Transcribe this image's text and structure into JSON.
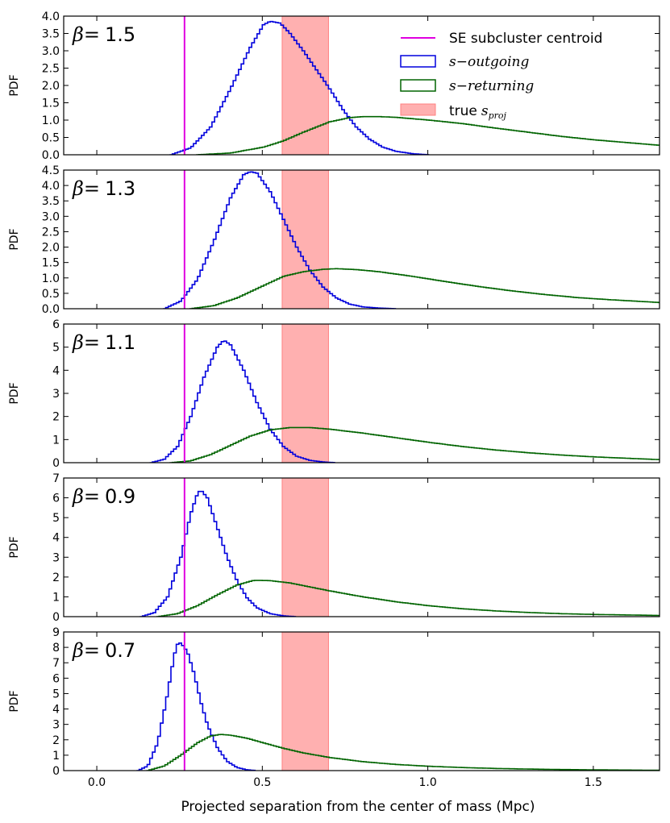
{
  "figure": {
    "xlabel": "Projected separation from the center of mass (Mpc)",
    "ylabel": "PDF",
    "xlim": [
      -0.1,
      1.7
    ],
    "xticks": [
      0.0,
      0.5,
      1.0,
      1.5
    ],
    "xtick_labels": [
      "0.0",
      "0.5",
      "1.0",
      "1.5"
    ],
    "colors": {
      "centroid": "#e000e0",
      "outgoing": "#0000dd",
      "returning": "#006400",
      "band_fill": "#ffb0b0",
      "band_edge": "#ff8080"
    }
  },
  "legend": {
    "position": "top-right",
    "items": [
      {
        "label": "SE subcluster centroid",
        "symbol": "line",
        "color": "#e000e0"
      },
      {
        "label": "s−outgoing",
        "symbol": "outline",
        "color": "#0000dd"
      },
      {
        "label": "s−returning",
        "symbol": "outline",
        "color": "#006400"
      },
      {
        "label": "true",
        "label_suffix": "s",
        "label_sub": "proj",
        "symbol": "fill",
        "color": "#ffb0b0"
      }
    ]
  },
  "chart_data": [
    {
      "type": "line",
      "panel_label": "β=",
      "beta": "1.5",
      "ylabel": "PDF",
      "ylim": [
        0,
        4.0
      ],
      "yticks": [
        0.0,
        0.5,
        1.0,
        1.5,
        2.0,
        2.5,
        3.0,
        3.5,
        4.0
      ],
      "ytick_labels": [
        "0.0",
        "0.5",
        "1.0",
        "1.5",
        "2.0",
        "2.5",
        "3.0",
        "3.5",
        "4.0"
      ],
      "centroid_x": 0.265,
      "band": [
        0.56,
        0.7
      ],
      "series": [
        {
          "name": "s−outgoing",
          "x": [
            0.22,
            0.28,
            0.34,
            0.4,
            0.46,
            0.5,
            0.52,
            0.55,
            0.58,
            0.62,
            0.66,
            0.7,
            0.74,
            0.78,
            0.82,
            0.86,
            0.9,
            0.95,
            1.0
          ],
          "y": [
            0.0,
            0.2,
            0.8,
            1.9,
            3.1,
            3.75,
            3.85,
            3.8,
            3.5,
            3.0,
            2.45,
            1.9,
            1.3,
            0.8,
            0.45,
            0.22,
            0.1,
            0.03,
            0.0
          ]
        },
        {
          "name": "s−returning",
          "x": [
            0.3,
            0.4,
            0.5,
            0.56,
            0.62,
            0.7,
            0.76,
            0.8,
            0.85,
            0.9,
            1.0,
            1.1,
            1.2,
            1.3,
            1.4,
            1.5,
            1.6,
            1.7
          ],
          "y": [
            0.0,
            0.05,
            0.22,
            0.4,
            0.65,
            0.95,
            1.07,
            1.1,
            1.1,
            1.08,
            1.0,
            0.9,
            0.77,
            0.65,
            0.53,
            0.43,
            0.35,
            0.27
          ]
        }
      ]
    },
    {
      "type": "line",
      "panel_label": "β=",
      "beta": "1.3",
      "ylabel": "PDF",
      "ylim": [
        0,
        4.5
      ],
      "yticks": [
        0.0,
        0.5,
        1.0,
        1.5,
        2.0,
        2.5,
        3.0,
        3.5,
        4.0,
        4.5
      ],
      "ytick_labels": [
        "0.0",
        "0.5",
        "1.0",
        "1.5",
        "2.0",
        "2.5",
        "3.0",
        "3.5",
        "4.0",
        "4.5"
      ],
      "centroid_x": 0.265,
      "band": [
        0.56,
        0.7
      ],
      "series": [
        {
          "name": "s−outgoing",
          "x": [
            0.2,
            0.25,
            0.3,
            0.35,
            0.4,
            0.44,
            0.46,
            0.48,
            0.52,
            0.56,
            0.6,
            0.64,
            0.68,
            0.72,
            0.76,
            0.8,
            0.85,
            0.9
          ],
          "y": [
            0.0,
            0.25,
            0.95,
            2.2,
            3.6,
            4.35,
            4.45,
            4.4,
            3.8,
            2.9,
            2.0,
            1.25,
            0.7,
            0.35,
            0.15,
            0.06,
            0.02,
            0.0
          ]
        },
        {
          "name": "s−returning",
          "x": [
            0.28,
            0.35,
            0.42,
            0.5,
            0.56,
            0.62,
            0.68,
            0.72,
            0.78,
            0.85,
            0.95,
            1.05,
            1.15,
            1.25,
            1.35,
            1.45,
            1.55,
            1.7
          ],
          "y": [
            0.0,
            0.1,
            0.35,
            0.75,
            1.05,
            1.2,
            1.28,
            1.3,
            1.27,
            1.2,
            1.05,
            0.88,
            0.72,
            0.58,
            0.46,
            0.36,
            0.29,
            0.2
          ]
        }
      ]
    },
    {
      "type": "line",
      "panel_label": "β=",
      "beta": "1.1",
      "ylabel": "PDF",
      "ylim": [
        0,
        6
      ],
      "yticks": [
        0,
        1,
        2,
        3,
        4,
        5,
        6
      ],
      "ytick_labels": [
        "0",
        "1",
        "2",
        "3",
        "4",
        "5",
        "6"
      ],
      "centroid_x": 0.265,
      "band": [
        0.56,
        0.7
      ],
      "series": [
        {
          "name": "s−outgoing",
          "x": [
            0.16,
            0.2,
            0.24,
            0.28,
            0.32,
            0.36,
            0.38,
            0.4,
            0.44,
            0.48,
            0.52,
            0.56,
            0.6,
            0.64,
            0.68,
            0.72
          ],
          "y": [
            0.0,
            0.15,
            0.7,
            2.0,
            3.7,
            5.0,
            5.3,
            5.1,
            4.0,
            2.6,
            1.45,
            0.7,
            0.28,
            0.1,
            0.03,
            0.0
          ]
        },
        {
          "name": "s−returning",
          "x": [
            0.22,
            0.28,
            0.34,
            0.4,
            0.46,
            0.52,
            0.58,
            0.64,
            0.7,
            0.8,
            0.9,
            1.0,
            1.1,
            1.2,
            1.3,
            1.4,
            1.5,
            1.7
          ],
          "y": [
            0.0,
            0.08,
            0.35,
            0.75,
            1.15,
            1.42,
            1.52,
            1.52,
            1.45,
            1.28,
            1.08,
            0.88,
            0.7,
            0.55,
            0.43,
            0.33,
            0.25,
            0.13
          ]
        }
      ]
    },
    {
      "type": "line",
      "panel_label": "β=",
      "beta": "0.9",
      "ylabel": "PDF",
      "ylim": [
        0,
        7
      ],
      "yticks": [
        0,
        1,
        2,
        3,
        4,
        5,
        6,
        7
      ],
      "ytick_labels": [
        "0",
        "1",
        "2",
        "3",
        "4",
        "5",
        "6",
        "7"
      ],
      "centroid_x": 0.265,
      "band": [
        0.56,
        0.7
      ],
      "series": [
        {
          "name": "s−outgoing",
          "x": [
            0.13,
            0.17,
            0.21,
            0.25,
            0.28,
            0.3,
            0.31,
            0.33,
            0.36,
            0.39,
            0.42,
            0.45,
            0.48,
            0.52,
            0.56,
            0.6
          ],
          "y": [
            0.0,
            0.2,
            1.0,
            3.0,
            5.2,
            6.2,
            6.4,
            6.0,
            4.5,
            3.0,
            1.8,
            0.95,
            0.45,
            0.15,
            0.04,
            0.0
          ]
        },
        {
          "name": "s−returning",
          "x": [
            0.18,
            0.24,
            0.3,
            0.36,
            0.42,
            0.47,
            0.52,
            0.58,
            0.64,
            0.7,
            0.8,
            0.9,
            1.0,
            1.1,
            1.2,
            1.3,
            1.4,
            1.5,
            1.7
          ],
          "y": [
            0.0,
            0.15,
            0.55,
            1.1,
            1.6,
            1.83,
            1.82,
            1.7,
            1.5,
            1.3,
            1.0,
            0.75,
            0.55,
            0.4,
            0.29,
            0.21,
            0.15,
            0.11,
            0.06
          ]
        }
      ]
    },
    {
      "type": "line",
      "panel_label": "β=",
      "beta": "0.7",
      "ylabel": "PDF",
      "ylim": [
        0,
        9
      ],
      "yticks": [
        0,
        1,
        2,
        3,
        4,
        5,
        6,
        7,
        8,
        9
      ],
      "ytick_labels": [
        "0",
        "1",
        "2",
        "3",
        "4",
        "5",
        "6",
        "7",
        "8",
        "9"
      ],
      "centroid_x": 0.265,
      "band": [
        0.56,
        0.7
      ],
      "series": [
        {
          "name": "s−outgoing",
          "x": [
            0.12,
            0.15,
            0.18,
            0.21,
            0.23,
            0.24,
            0.25,
            0.27,
            0.29,
            0.31,
            0.33,
            0.36,
            0.39,
            0.42,
            0.45,
            0.48
          ],
          "y": [
            0.0,
            0.3,
            1.8,
            5.0,
            7.5,
            8.2,
            8.3,
            7.7,
            6.3,
            4.5,
            3.0,
            1.5,
            0.6,
            0.2,
            0.05,
            0.0
          ]
        },
        {
          "name": "s−returning",
          "x": [
            0.15,
            0.2,
            0.25,
            0.3,
            0.34,
            0.37,
            0.4,
            0.45,
            0.5,
            0.56,
            0.62,
            0.7,
            0.8,
            0.9,
            1.0,
            1.1,
            1.2,
            1.3,
            1.4,
            1.5,
            1.7
          ],
          "y": [
            0.0,
            0.3,
            1.0,
            1.8,
            2.25,
            2.35,
            2.3,
            2.1,
            1.8,
            1.45,
            1.15,
            0.85,
            0.58,
            0.4,
            0.28,
            0.2,
            0.14,
            0.1,
            0.07,
            0.05,
            0.02
          ]
        }
      ]
    }
  ]
}
